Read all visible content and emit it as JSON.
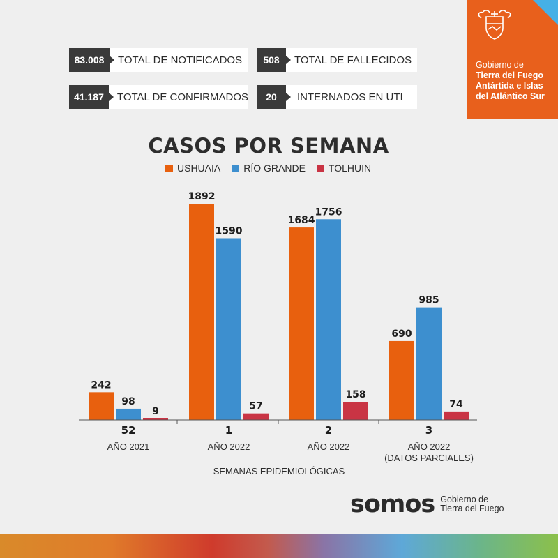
{
  "stats": [
    {
      "value": "83.008",
      "label": "TOTAL DE NOTIFICADOS"
    },
    {
      "value": "508",
      "label": "TOTAL DE FALLECIDOS"
    },
    {
      "value": "41.187",
      "label": "TOTAL DE CONFIRMADOS"
    },
    {
      "value": "20",
      "label": "INTERNADOS EN UTI"
    }
  ],
  "government": {
    "line1": "Gobierno de",
    "line2": "Tierra del Fuego",
    "line3": "Antártida e Islas",
    "line4": "del Atlántico Sur"
  },
  "footer": {
    "brand": "somos",
    "sub_line1": "Gobierno de",
    "sub_line2": "Tierra del Fuego"
  },
  "colors": {
    "ushuaia": "#e8600e",
    "rio_grande": "#3d8fcf",
    "tolhuin": "#c93444",
    "dark": "#3a3a3a",
    "gov_orange": "#e8601c"
  },
  "chart_data": {
    "type": "bar",
    "title": "CASOS POR SEMANA",
    "xlabel": "SEMANAS EPIDEMIOLÓGICAS",
    "categories": [
      "52",
      "1",
      "2",
      "3"
    ],
    "category_sublabels": [
      [
        "AÑO 2021"
      ],
      [
        "AÑO 2022"
      ],
      [
        "AÑO 2022"
      ],
      [
        "AÑO 2022",
        "(DATOS PARCIALES)"
      ]
    ],
    "series": [
      {
        "name": "USHUAIA",
        "values": [
          242,
          1892,
          1684,
          690
        ]
      },
      {
        "name": "RÍO GRANDE",
        "values": [
          98,
          1590,
          1756,
          985
        ]
      },
      {
        "name": "TOLHUIN",
        "values": [
          9,
          57,
          158,
          74
        ]
      }
    ],
    "ylim": [
      0,
      1892
    ],
    "legend_position": "top-center",
    "grid": false
  }
}
